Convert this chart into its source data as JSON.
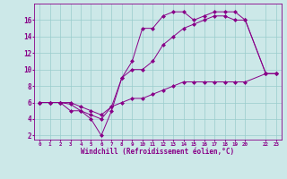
{
  "xlabel": "Windchill (Refroidissement éolien,°C)",
  "bg_color": "#cce8e8",
  "line_color": "#880088",
  "grid_color": "#99cccc",
  "xlim": [
    -0.5,
    23.5
  ],
  "ylim": [
    1.5,
    18
  ],
  "xticks": [
    0,
    1,
    2,
    3,
    4,
    5,
    6,
    7,
    8,
    9,
    10,
    11,
    12,
    13,
    14,
    15,
    16,
    17,
    18,
    19,
    20,
    22,
    23
  ],
  "yticks": [
    2,
    4,
    6,
    8,
    10,
    12,
    14,
    16
  ],
  "line1_x": [
    0,
    1,
    2,
    3,
    4,
    5,
    6,
    7,
    8,
    9,
    10,
    11,
    12,
    13,
    14,
    15,
    16,
    17,
    18,
    19,
    20,
    22,
    23
  ],
  "line1_y": [
    6,
    6,
    6,
    5,
    5,
    4,
    2,
    5,
    9,
    11,
    15,
    15,
    16.5,
    17,
    17,
    16,
    16.5,
    17,
    17,
    17,
    16,
    9.5,
    9.5
  ],
  "line2_x": [
    0,
    1,
    2,
    3,
    4,
    5,
    6,
    7,
    8,
    9,
    10,
    11,
    12,
    13,
    14,
    15,
    16,
    17,
    18,
    19,
    20,
    22,
    23
  ],
  "line2_y": [
    6,
    6,
    6,
    5.8,
    5,
    4.5,
    4,
    5.5,
    9,
    10,
    10,
    11,
    13,
    14,
    15,
    15.5,
    16,
    16.5,
    16.5,
    16,
    16,
    9.5,
    9.5
  ],
  "line3_x": [
    0,
    1,
    2,
    3,
    4,
    5,
    6,
    7,
    8,
    9,
    10,
    11,
    12,
    13,
    14,
    15,
    16,
    17,
    18,
    19,
    20,
    22,
    23
  ],
  "line3_y": [
    6,
    6,
    6,
    6,
    5.5,
    5,
    4.5,
    5.5,
    6,
    6.5,
    6.5,
    7,
    7.5,
    8,
    8.5,
    8.5,
    8.5,
    8.5,
    8.5,
    8.5,
    8.5,
    9.5,
    9.5
  ]
}
